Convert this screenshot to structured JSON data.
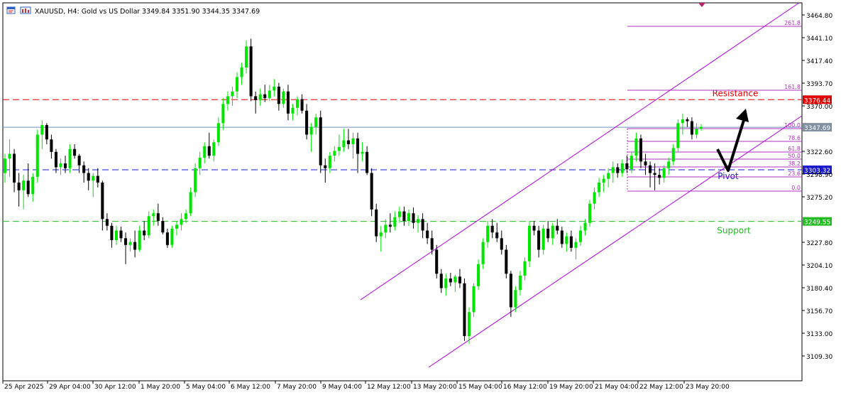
{
  "header": {
    "symbol_text": "XAUUSD, H4:  Gold vs US Dollar",
    "ohlc_text": "3349.84 3351.90 3344.35 3347.69"
  },
  "colors": {
    "bull": "#00e600",
    "bear": "#000000",
    "resistance": "#e00000",
    "support": "#22bb22",
    "pivot": "#1a1acc",
    "channel": "#b000e0",
    "fib": "#b030c0",
    "price_line": "#7090c0"
  },
  "price_axis": {
    "ticks": [
      "3464.80",
      "3441.10",
      "3417.40",
      "3393.70",
      "3370.00",
      "3322.60",
      "3298.90",
      "3275.20",
      "3227.80",
      "3204.10",
      "3180.40",
      "3156.70",
      "3133.00",
      "3109.30"
    ]
  },
  "time_axis": {
    "ticks": [
      "25 Apr 2025",
      "29 Apr 04:00",
      "30 Apr 12:00",
      "1 May 20:00",
      "5 May 04:00",
      "6 May 12:00",
      "7 May 20:00",
      "9 May 04:00",
      "12 May 12:00",
      "13 May 20:00",
      "15 May 04:00",
      "16 May 12:00",
      "19 May 20:00",
      "21 May 04:00",
      "22 May 12:00",
      "23 May 20:00"
    ]
  },
  "levels": {
    "resistance": {
      "label": "Resistance",
      "price": "3376.44"
    },
    "support": {
      "label": "Support",
      "price": "3249.55"
    },
    "pivot": {
      "label": "Pivot",
      "price": "3303.32"
    },
    "current": {
      "price": "3347.69"
    }
  },
  "fib_labels": [
    "261.8",
    "161.8",
    "100.0",
    "78.6",
    "61.8",
    "50.0",
    "38.2",
    "23.6",
    "0.0"
  ],
  "candles": [
    [
      3300,
      3320,
      3290,
      3315
    ],
    [
      3315,
      3335,
      3296,
      3320
    ],
    [
      3320,
      3325,
      3280,
      3290
    ],
    [
      3290,
      3300,
      3265,
      3282
    ],
    [
      3282,
      3298,
      3262,
      3292
    ],
    [
      3292,
      3310,
      3275,
      3278
    ],
    [
      3278,
      3300,
      3270,
      3296
    ],
    [
      3296,
      3345,
      3290,
      3340
    ],
    [
      3340,
      3355,
      3325,
      3350
    ],
    [
      3350,
      3352,
      3330,
      3335
    ],
    [
      3335,
      3340,
      3315,
      3322
    ],
    [
      3322,
      3325,
      3300,
      3306
    ],
    [
      3306,
      3315,
      3298,
      3310
    ],
    [
      3310,
      3318,
      3300,
      3305
    ],
    [
      3305,
      3330,
      3300,
      3325
    ],
    [
      3325,
      3330,
      3315,
      3318
    ],
    [
      3318,
      3320,
      3300,
      3308
    ],
    [
      3308,
      3312,
      3290,
      3300
    ],
    [
      3300,
      3305,
      3282,
      3292
    ],
    [
      3292,
      3300,
      3275,
      3297
    ],
    [
      3297,
      3305,
      3285,
      3290
    ],
    [
      3290,
      3292,
      3240,
      3252
    ],
    [
      3252,
      3258,
      3240,
      3245
    ],
    [
      3245,
      3248,
      3222,
      3230
    ],
    [
      3230,
      3245,
      3225,
      3240
    ],
    [
      3240,
      3244,
      3228,
      3232
    ],
    [
      3232,
      3238,
      3205,
      3225
    ],
    [
      3225,
      3232,
      3218,
      3228
    ],
    [
      3228,
      3240,
      3212,
      3220
    ],
    [
      3220,
      3245,
      3218,
      3240
    ],
    [
      3240,
      3250,
      3230,
      3235
    ],
    [
      3235,
      3260,
      3232,
      3255
    ],
    [
      3255,
      3262,
      3245,
      3258
    ],
    [
      3258,
      3268,
      3245,
      3250
    ],
    [
      3250,
      3254,
      3236,
      3238
    ],
    [
      3238,
      3242,
      3222,
      3225
    ],
    [
      3225,
      3245,
      3222,
      3242
    ],
    [
      3242,
      3250,
      3235,
      3246
    ],
    [
      3246,
      3258,
      3240,
      3252
    ],
    [
      3252,
      3262,
      3248,
      3258
    ],
    [
      3258,
      3285,
      3255,
      3280
    ],
    [
      3280,
      3310,
      3275,
      3305
    ],
    [
      3305,
      3322,
      3298,
      3316
    ],
    [
      3316,
      3332,
      3310,
      3328
    ],
    [
      3328,
      3342,
      3315,
      3318
    ],
    [
      3318,
      3335,
      3312,
      3332
    ],
    [
      3332,
      3358,
      3328,
      3352
    ],
    [
      3352,
      3378,
      3345,
      3372
    ],
    [
      3372,
      3385,
      3365,
      3380
    ],
    [
      3380,
      3390,
      3370,
      3385
    ],
    [
      3385,
      3405,
      3378,
      3400
    ],
    [
      3400,
      3415,
      3392,
      3410
    ],
    [
      3410,
      3438,
      3404,
      3432
    ],
    [
      3432,
      3440,
      3375,
      3380
    ],
    [
      3380,
      3385,
      3362,
      3376
    ],
    [
      3376,
      3388,
      3370,
      3382
    ],
    [
      3382,
      3392,
      3374,
      3378
    ],
    [
      3378,
      3392,
      3375,
      3386
    ],
    [
      3386,
      3398,
      3380,
      3390
    ],
    [
      3390,
      3394,
      3365,
      3372
    ],
    [
      3372,
      3388,
      3368,
      3385
    ],
    [
      3385,
      3392,
      3355,
      3362
    ],
    [
      3362,
      3372,
      3355,
      3368
    ],
    [
      3368,
      3380,
      3360,
      3377
    ],
    [
      3377,
      3382,
      3362,
      3365
    ],
    [
      3365,
      3372,
      3335,
      3340
    ],
    [
      3340,
      3352,
      3322,
      3348
    ],
    [
      3348,
      3362,
      3340,
      3358
    ],
    [
      3358,
      3365,
      3300,
      3308
    ],
    [
      3308,
      3315,
      3290,
      3305
    ],
    [
      3305,
      3322,
      3300,
      3318
    ],
    [
      3318,
      3328,
      3312,
      3323
    ],
    [
      3323,
      3340,
      3318,
      3327
    ],
    [
      3327,
      3346,
      3322,
      3334
    ],
    [
      3334,
      3346,
      3325,
      3330
    ],
    [
      3330,
      3342,
      3315,
      3336
    ],
    [
      3336,
      3342,
      3300,
      3320
    ],
    [
      3320,
      3332,
      3312,
      3322
    ],
    [
      3322,
      3328,
      3298,
      3300
    ],
    [
      3300,
      3305,
      3255,
      3262
    ],
    [
      3262,
      3268,
      3228,
      3234
    ],
    [
      3234,
      3245,
      3218,
      3238
    ],
    [
      3238,
      3252,
      3232,
      3246
    ],
    [
      3246,
      3258,
      3238,
      3244
    ],
    [
      3244,
      3260,
      3240,
      3254
    ],
    [
      3254,
      3265,
      3248,
      3260
    ],
    [
      3260,
      3265,
      3245,
      3250
    ],
    [
      3250,
      3262,
      3245,
      3258
    ],
    [
      3258,
      3264,
      3242,
      3248
    ],
    [
      3248,
      3256,
      3238,
      3252
    ],
    [
      3252,
      3258,
      3232,
      3240
    ],
    [
      3240,
      3248,
      3226,
      3232
    ],
    [
      3232,
      3240,
      3215,
      3220
    ],
    [
      3220,
      3225,
      3190,
      3195
    ],
    [
      3195,
      3200,
      3175,
      3180
    ],
    [
      3180,
      3195,
      3172,
      3190
    ],
    [
      3190,
      3196,
      3182,
      3186
    ],
    [
      3186,
      3194,
      3176,
      3192
    ],
    [
      3192,
      3200,
      3180,
      3185
    ],
    [
      3185,
      3190,
      3125,
      3130
    ],
    [
      3130,
      3160,
      3122,
      3155
    ],
    [
      3155,
      3185,
      3150,
      3182
    ],
    [
      3182,
      3210,
      3178,
      3205
    ],
    [
      3205,
      3232,
      3200,
      3228
    ],
    [
      3228,
      3250,
      3222,
      3245
    ],
    [
      3245,
      3252,
      3232,
      3238
    ],
    [
      3238,
      3248,
      3228,
      3232
    ],
    [
      3232,
      3240,
      3215,
      3220
    ],
    [
      3220,
      3225,
      3190,
      3195
    ],
    [
      3195,
      3198,
      3150,
      3160
    ],
    [
      3160,
      3182,
      3155,
      3178
    ],
    [
      3178,
      3198,
      3172,
      3193
    ],
    [
      3193,
      3212,
      3188,
      3208
    ],
    [
      3208,
      3250,
      3202,
      3245
    ],
    [
      3245,
      3250,
      3235,
      3240
    ],
    [
      3240,
      3245,
      3212,
      3220
    ],
    [
      3220,
      3246,
      3215,
      3242
    ],
    [
      3242,
      3250,
      3228,
      3232
    ],
    [
      3232,
      3248,
      3225,
      3245
    ],
    [
      3245,
      3252,
      3236,
      3240
    ],
    [
      3240,
      3244,
      3222,
      3226
    ],
    [
      3226,
      3238,
      3218,
      3234
    ],
    [
      3234,
      3240,
      3218,
      3222
    ],
    [
      3222,
      3232,
      3210,
      3228
    ],
    [
      3228,
      3245,
      3224,
      3240
    ],
    [
      3240,
      3252,
      3235,
      3248
    ],
    [
      3248,
      3272,
      3244,
      3268
    ],
    [
      3268,
      3285,
      3262,
      3280
    ],
    [
      3280,
      3295,
      3275,
      3290
    ],
    [
      3290,
      3298,
      3280,
      3294
    ],
    [
      3294,
      3305,
      3285,
      3300
    ],
    [
      3300,
      3312,
      3290,
      3306
    ],
    [
      3306,
      3310,
      3295,
      3300
    ],
    [
      3300,
      3314,
      3296,
      3310
    ],
    [
      3310,
      3318,
      3300,
      3304
    ],
    [
      3304,
      3322,
      3300,
      3318
    ],
    [
      3318,
      3342,
      3312,
      3336
    ],
    [
      3336,
      3340,
      3305,
      3312
    ],
    [
      3312,
      3320,
      3298,
      3308
    ],
    [
      3308,
      3312,
      3285,
      3300
    ],
    [
      3300,
      3310,
      3282,
      3298
    ],
    [
      3298,
      3305,
      3288,
      3295
    ],
    [
      3295,
      3308,
      3290,
      3305
    ],
    [
      3305,
      3316,
      3298,
      3312
    ],
    [
      3312,
      3330,
      3308,
      3326
    ],
    [
      3326,
      3356,
      3322,
      3352
    ],
    [
      3352,
      3362,
      3340,
      3356
    ],
    [
      3356,
      3358,
      3348,
      3354
    ],
    [
      3354,
      3358,
      3335,
      3340
    ],
    [
      3340,
      3352,
      3336,
      3346
    ],
    [
      3346,
      3351,
      3344,
      3348
    ]
  ]
}
